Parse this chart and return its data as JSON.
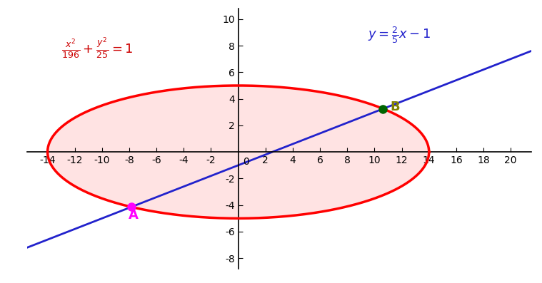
{
  "ellipse_a": 14,
  "ellipse_b": 5,
  "line_slope": 0.4,
  "line_intercept": -1,
  "xlim": [
    -15.5,
    21.5
  ],
  "ylim": [
    -8.8,
    10.8
  ],
  "xticks_left": [
    -14,
    -12,
    -10,
    -8,
    -6,
    -4,
    -2
  ],
  "xticks_right": [
    2,
    4,
    6,
    8,
    10,
    12,
    14,
    16,
    18,
    20
  ],
  "yticks_top": [
    2,
    4,
    6,
    8,
    10
  ],
  "yticks_bottom": [
    -2,
    -4,
    -6,
    -8
  ],
  "ellipse_color": "#ff0000",
  "ellipse_fill_color": "#ffcccc",
  "ellipse_fill_alpha": 0.55,
  "line_color": "#2222cc",
  "point_A_color": "#ff00ff",
  "point_B_color": "#006400",
  "label_A": "A",
  "label_B": "B",
  "ellipse_eq_color": "#cc0000",
  "line_eq_color": "#2222cc",
  "background_color": "#ffffff",
  "tick_fontsize": 10,
  "line_x_start": -15.5,
  "line_x_end": 21.5
}
